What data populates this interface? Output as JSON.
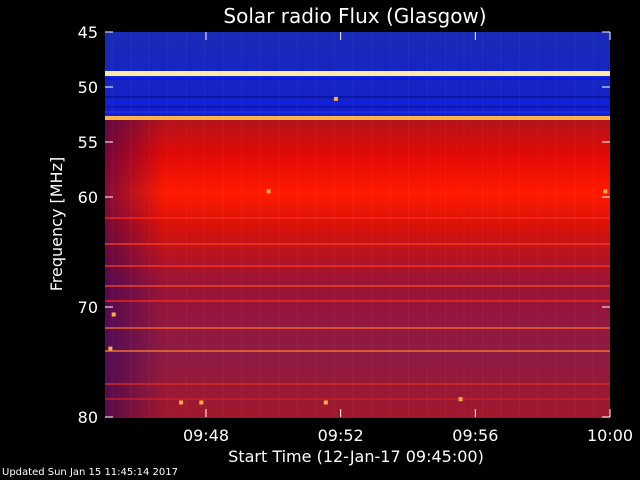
{
  "chart_data": {
    "type": "heatmap",
    "title": "Solar radio Flux (Glasgow)",
    "xlabel": "Start Time (12-Jan-17 09:45:00)",
    "ylabel": "Frequency [MHz]",
    "x_tick_labels": [
      "09:48",
      "09:52",
      "09:56",
      "10:00"
    ],
    "x_tick_minutes": [
      48,
      52,
      56,
      60
    ],
    "xlim_minutes": [
      45,
      60
    ],
    "y_tick_labels": [
      "45",
      "50",
      "55",
      "60",
      "70",
      "80"
    ],
    "ylim": [
      45,
      80
    ],
    "y_axis_inverted": true,
    "bands": [
      {
        "from": 45.0,
        "to": 48.5,
        "intensity": "low"
      },
      {
        "from": 48.5,
        "to": 49.0,
        "intensity": "very-high"
      },
      {
        "from": 49.0,
        "to": 52.8,
        "intensity": "low"
      },
      {
        "from": 52.8,
        "to": 53.4,
        "intensity": "very-high"
      },
      {
        "from": 53.4,
        "to": 80.0,
        "intensity": "high"
      }
    ],
    "colors": {
      "low": "#0a14d8",
      "high": "#d80e05",
      "very-high": "#ffd070",
      "background": "#000000"
    }
  },
  "footer": {
    "updated": "Updated Sun Jan 15 11:45:14 2017"
  }
}
